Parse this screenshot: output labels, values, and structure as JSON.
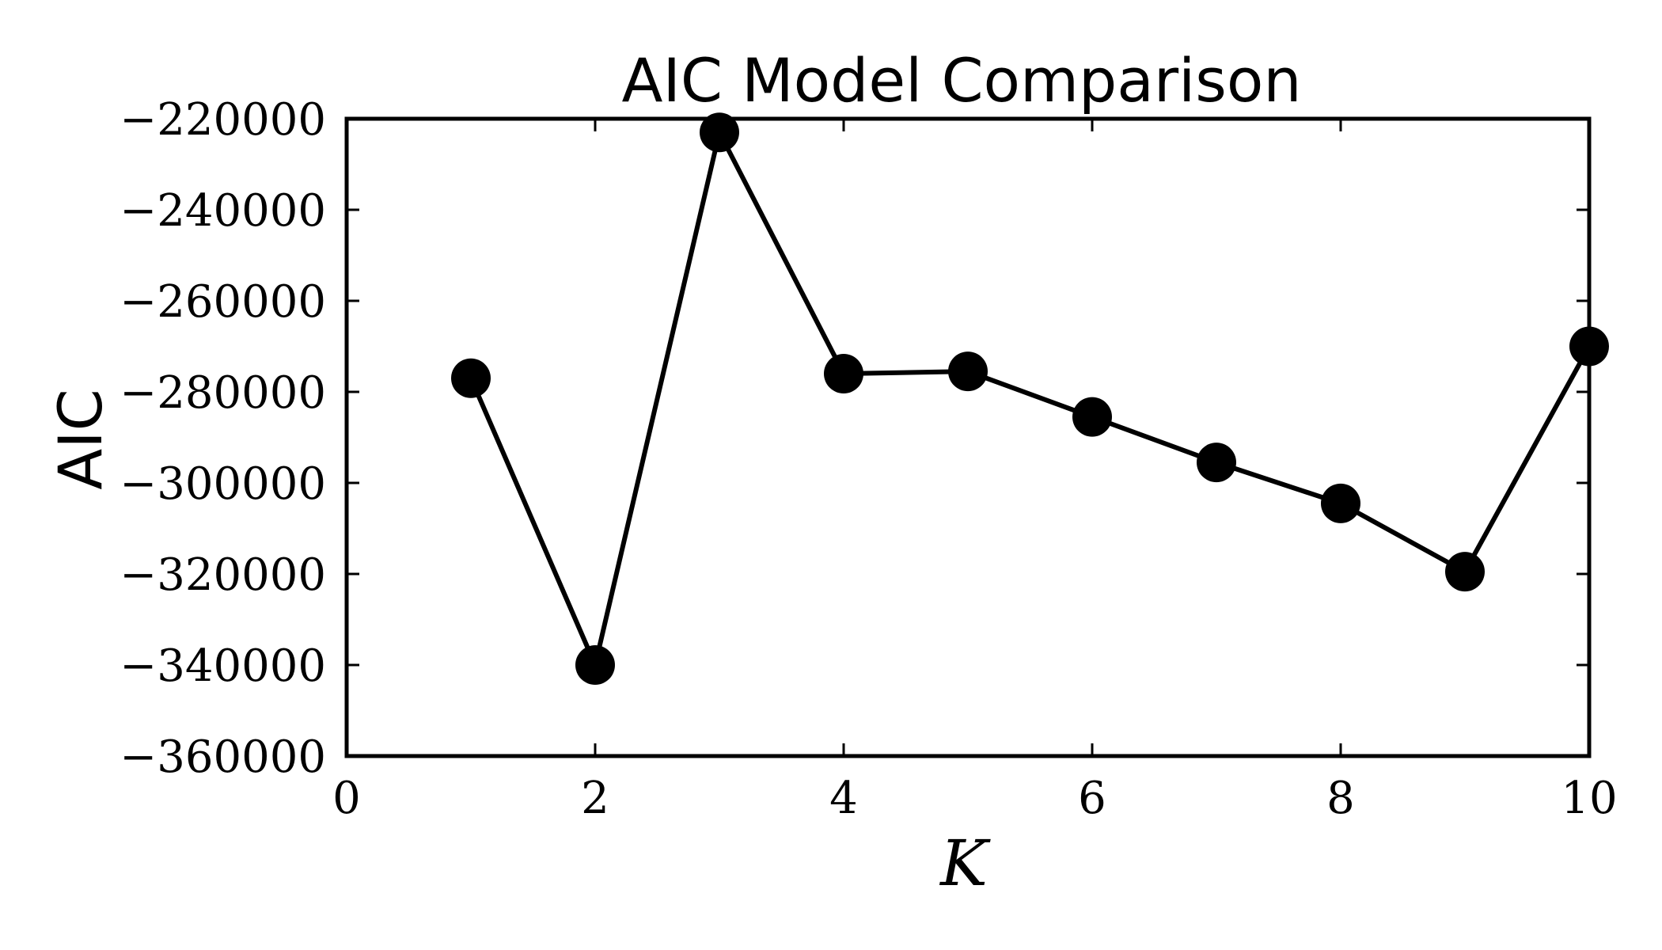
{
  "chart_data": {
    "type": "line",
    "title": "AIC Model Comparison",
    "xlabel": "K",
    "ylabel": "AIC",
    "xlim": [
      0,
      10
    ],
    "ylim": [
      -360000,
      -220000
    ],
    "x_ticks": [
      0,
      2,
      4,
      6,
      8,
      10
    ],
    "x_tick_labels": [
      "0",
      "2",
      "4",
      "6",
      "8",
      "10"
    ],
    "y_ticks": [
      -220000,
      -240000,
      -260000,
      -280000,
      -300000,
      -320000,
      -340000,
      -360000
    ],
    "y_tick_labels": [
      "−220000",
      "−240000",
      "−260000",
      "−280000",
      "−300000",
      "−320000",
      "−340000",
      "−360000"
    ],
    "grid": false,
    "legend": "none",
    "series": [
      {
        "color": "#000000",
        "marker": "circle",
        "x": [
          1,
          2,
          3,
          4,
          5,
          6,
          7,
          8,
          9,
          10
        ],
        "y": [
          -277000,
          -340000,
          -223000,
          -276000,
          -275500,
          -285500,
          -295500,
          -304500,
          -319500,
          -270000
        ]
      }
    ]
  }
}
